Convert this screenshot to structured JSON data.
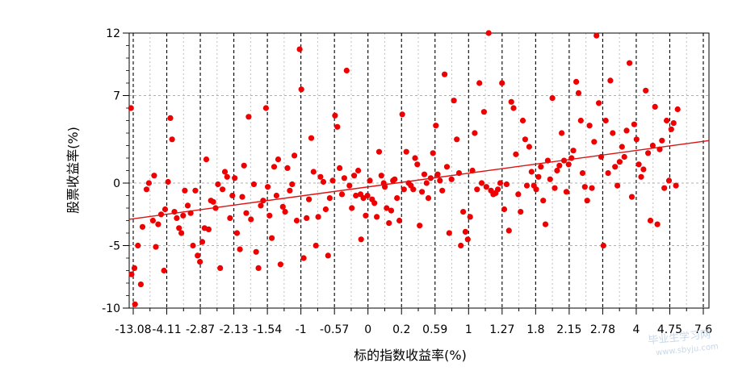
{
  "chart_data": {
    "type": "scatter",
    "title": "",
    "xlabel": "标的指数收益率(%)",
    "ylabel": "股票收益率(%)",
    "x_tick_labels": [
      "-13.08",
      "-4.11",
      "-2.87",
      "-2.13",
      "-1.54",
      "-1",
      "-0.57",
      "0",
      "0.2",
      "0.59",
      "1",
      "1.27",
      "1.8",
      "2.15",
      "2.78",
      "4",
      "4.75",
      "7.6"
    ],
    "x_scale": "ordinal-quantile",
    "y_ticks": [
      12,
      7,
      0,
      -5,
      -10
    ],
    "ylim": [
      -10,
      12
    ],
    "grid": true,
    "point_color": "#ee0000",
    "line_color": "#dd1111",
    "trend_line": {
      "y_at_x_start": -2.9,
      "y_at_x_end": 3.4
    },
    "series": [
      {
        "values_q_y": [
          [
            0.3,
            6.0
          ],
          [
            0.9,
            -6.8
          ],
          [
            0.4,
            -7.3
          ],
          [
            1.0,
            -9.7
          ],
          [
            2.0,
            -8.1
          ],
          [
            1.5,
            -5.0
          ],
          [
            2.3,
            -3.5
          ],
          [
            3.0,
            -0.5
          ],
          [
            3.4,
            0.0
          ],
          [
            4.1,
            -3.0
          ],
          [
            4.3,
            0.6
          ],
          [
            4.6,
            -5.1
          ],
          [
            5.0,
            -3.3
          ],
          [
            5.5,
            -2.5
          ],
          [
            6.0,
            -7.0
          ],
          [
            6.2,
            -2.1
          ],
          [
            6.7,
            0.1
          ],
          [
            7.1,
            5.2
          ],
          [
            7.4,
            3.5
          ],
          [
            7.8,
            -2.3
          ],
          [
            8.2,
            -2.8
          ],
          [
            8.6,
            -3.6
          ],
          [
            9.0,
            -4.0
          ],
          [
            9.3,
            -2.6
          ],
          [
            9.6,
            -0.6
          ],
          [
            10.1,
            -1.8
          ],
          [
            10.6,
            -2.4
          ],
          [
            11.0,
            -5.0
          ],
          [
            11.4,
            -0.6
          ],
          [
            11.8,
            -5.8
          ],
          [
            12.2,
            -6.3
          ],
          [
            12.6,
            -4.7
          ],
          [
            13.0,
            -3.6
          ],
          [
            13.3,
            1.9
          ],
          [
            13.7,
            -3.7
          ],
          [
            14.1,
            -1.4
          ],
          [
            14.5,
            -1.5
          ],
          [
            14.9,
            -2.0
          ],
          [
            15.3,
            -0.1
          ],
          [
            15.7,
            -6.8
          ],
          [
            16.1,
            -0.5
          ],
          [
            16.5,
            0.9
          ],
          [
            16.9,
            0.5
          ],
          [
            17.4,
            -2.8
          ],
          [
            17.8,
            -1.0
          ],
          [
            18.2,
            0.4
          ],
          [
            18.6,
            -4.0
          ],
          [
            19.1,
            -5.3
          ],
          [
            19.5,
            -1.1
          ],
          [
            19.8,
            1.4
          ],
          [
            20.2,
            -2.4
          ],
          [
            20.6,
            5.3
          ],
          [
            21.0,
            -2.9
          ],
          [
            21.5,
            -0.1
          ],
          [
            21.9,
            -5.5
          ],
          [
            22.3,
            -6.8
          ],
          [
            22.7,
            -1.8
          ],
          [
            23.1,
            -1.4
          ],
          [
            23.6,
            6.0
          ],
          [
            23.9,
            -0.3
          ],
          [
            24.2,
            -2.6
          ],
          [
            24.6,
            -4.4
          ],
          [
            25.0,
            1.3
          ],
          [
            25.4,
            -1.0
          ],
          [
            25.7,
            1.9
          ],
          [
            26.1,
            -6.5
          ],
          [
            26.5,
            -1.9
          ],
          [
            26.9,
            -2.3
          ],
          [
            27.3,
            1.2
          ],
          [
            27.7,
            -0.6
          ],
          [
            28.1,
            -0.1
          ],
          [
            28.5,
            2.2
          ],
          [
            28.9,
            -3.0
          ],
          [
            29.4,
            10.7
          ],
          [
            29.7,
            7.5
          ],
          [
            30.1,
            -6.0
          ],
          [
            30.6,
            -2.8
          ],
          [
            31.0,
            -1.3
          ],
          [
            31.4,
            3.6
          ],
          [
            31.8,
            0.9
          ],
          [
            32.2,
            -5.0
          ],
          [
            32.6,
            -2.7
          ],
          [
            33.0,
            0.5
          ],
          [
            33.5,
            0.1
          ],
          [
            33.9,
            -2.1
          ],
          [
            34.3,
            -5.8
          ],
          [
            34.6,
            -1.2
          ],
          [
            35.1,
            0.2
          ],
          [
            35.5,
            5.4
          ],
          [
            35.9,
            4.5
          ],
          [
            36.3,
            1.2
          ],
          [
            36.7,
            -0.9
          ],
          [
            37.1,
            0.4
          ],
          [
            37.5,
            9.0
          ],
          [
            38.0,
            -0.2
          ],
          [
            38.4,
            -2.0
          ],
          [
            38.8,
            0.6
          ],
          [
            39.1,
            -1.0
          ],
          [
            39.5,
            1.0
          ],
          [
            39.9,
            -0.9
          ],
          [
            40.0,
            -4.5
          ],
          [
            40.4,
            -1.2
          ],
          [
            40.8,
            -2.6
          ],
          [
            41.1,
            -1.0
          ],
          [
            41.5,
            0.2
          ],
          [
            41.9,
            -1.3
          ],
          [
            42.3,
            -1.6
          ],
          [
            42.7,
            -2.7
          ],
          [
            43.1,
            2.5
          ],
          [
            43.5,
            0.6
          ],
          [
            43.9,
            0.0
          ],
          [
            44.1,
            -0.3
          ],
          [
            44.4,
            -2.0
          ],
          [
            44.8,
            -3.2
          ],
          [
            45.2,
            -2.2
          ],
          [
            45.5,
            0.2
          ],
          [
            45.8,
            0.3
          ],
          [
            46.2,
            -1.2
          ],
          [
            46.6,
            -3.0
          ],
          [
            47.1,
            5.5
          ],
          [
            47.4,
            -0.5
          ],
          [
            47.8,
            2.5
          ],
          [
            48.2,
            0.0
          ],
          [
            48.6,
            -0.2
          ],
          [
            49.0,
            -0.5
          ],
          [
            49.3,
            2.0
          ],
          [
            49.7,
            1.5
          ],
          [
            50.1,
            -3.4
          ],
          [
            50.5,
            -0.7
          ],
          [
            50.9,
            0.7
          ],
          [
            51.3,
            0.0
          ],
          [
            51.6,
            -1.2
          ],
          [
            52.0,
            0.4
          ],
          [
            52.4,
            2.4
          ],
          [
            52.9,
            4.6
          ],
          [
            53.2,
            0.7
          ],
          [
            53.6,
            0.2
          ],
          [
            54.0,
            -0.6
          ],
          [
            54.4,
            8.7
          ],
          [
            54.8,
            1.3
          ],
          [
            55.2,
            -4.0
          ],
          [
            55.6,
            0.3
          ],
          [
            56.0,
            6.6
          ],
          [
            56.5,
            3.5
          ],
          [
            56.9,
            0.8
          ],
          [
            57.2,
            -5.0
          ],
          [
            57.6,
            -2.3
          ],
          [
            58.0,
            -3.9
          ],
          [
            58.4,
            -4.5
          ],
          [
            58.8,
            -2.7
          ],
          [
            59.2,
            1.0
          ],
          [
            59.6,
            4.0
          ],
          [
            60.0,
            -0.5
          ],
          [
            60.4,
            8.0
          ],
          [
            60.8,
            0.0
          ],
          [
            61.2,
            5.7
          ],
          [
            61.6,
            -0.3
          ],
          [
            62.0,
            12.0
          ],
          [
            62.4,
            -0.6
          ],
          [
            62.8,
            -0.9
          ],
          [
            63.2,
            -0.8
          ],
          [
            63.6,
            -0.5
          ],
          [
            64.0,
            0.0
          ],
          [
            64.3,
            8.0
          ],
          [
            64.7,
            -2.1
          ],
          [
            65.1,
            -0.1
          ],
          [
            65.5,
            -3.8
          ],
          [
            65.9,
            6.5
          ],
          [
            66.3,
            6.0
          ],
          [
            66.7,
            2.3
          ],
          [
            67.1,
            -0.9
          ],
          [
            67.5,
            -2.3
          ],
          [
            67.9,
            5.0
          ],
          [
            68.3,
            3.5
          ],
          [
            68.6,
            -0.2
          ],
          [
            69.0,
            2.9
          ],
          [
            69.4,
            0.9
          ],
          [
            69.8,
            -0.2
          ],
          [
            70.2,
            -0.5
          ],
          [
            70.6,
            0.5
          ],
          [
            71.0,
            1.3
          ],
          [
            71.4,
            -1.4
          ],
          [
            71.8,
            -3.3
          ],
          [
            72.2,
            1.8
          ],
          [
            72.6,
            0.3
          ],
          [
            73.0,
            6.8
          ],
          [
            73.4,
            -0.4
          ],
          [
            73.8,
            1.0
          ],
          [
            74.2,
            1.4
          ],
          [
            74.6,
            4.0
          ],
          [
            75.0,
            1.8
          ],
          [
            75.4,
            -0.7
          ],
          [
            75.8,
            1.5
          ],
          [
            76.3,
            2.0
          ],
          [
            76.6,
            2.6
          ],
          [
            77.1,
            8.1
          ],
          [
            77.5,
            7.2
          ],
          [
            77.9,
            5.0
          ],
          [
            78.2,
            0.8
          ],
          [
            78.6,
            -0.3
          ],
          [
            79.0,
            -1.4
          ],
          [
            79.4,
            4.6
          ],
          [
            79.8,
            -0.4
          ],
          [
            80.2,
            3.3
          ],
          [
            80.6,
            11.8
          ],
          [
            81.0,
            6.4
          ],
          [
            81.4,
            2.1
          ],
          [
            81.8,
            -5.0
          ],
          [
            82.2,
            5.0
          ],
          [
            82.6,
            0.8
          ],
          [
            83.0,
            8.2
          ],
          [
            83.4,
            4.0
          ],
          [
            83.8,
            1.3
          ],
          [
            84.2,
            -0.2
          ],
          [
            84.6,
            1.7
          ],
          [
            85.0,
            2.9
          ],
          [
            85.4,
            2.1
          ],
          [
            85.8,
            4.2
          ],
          [
            86.3,
            9.6
          ],
          [
            86.7,
            -1.1
          ],
          [
            87.1,
            4.7
          ],
          [
            87.5,
            3.5
          ],
          [
            87.9,
            1.5
          ],
          [
            88.3,
            0.5
          ],
          [
            88.7,
            1.1
          ],
          [
            89.1,
            7.4
          ],
          [
            89.5,
            2.4
          ],
          [
            89.9,
            -3.0
          ],
          [
            90.3,
            3.0
          ],
          [
            90.7,
            6.1
          ],
          [
            91.1,
            -3.3
          ],
          [
            91.5,
            2.7
          ],
          [
            91.9,
            3.4
          ],
          [
            92.3,
            -0.4
          ],
          [
            92.7,
            5.0
          ],
          [
            93.1,
            0.2
          ],
          [
            93.5,
            4.3
          ],
          [
            93.9,
            4.8
          ],
          [
            94.3,
            -0.2
          ],
          [
            94.6,
            5.9
          ]
        ]
      }
    ]
  },
  "watermark": {
    "line1": "毕业生学习网",
    "line2": "www.sbyju.com"
  }
}
